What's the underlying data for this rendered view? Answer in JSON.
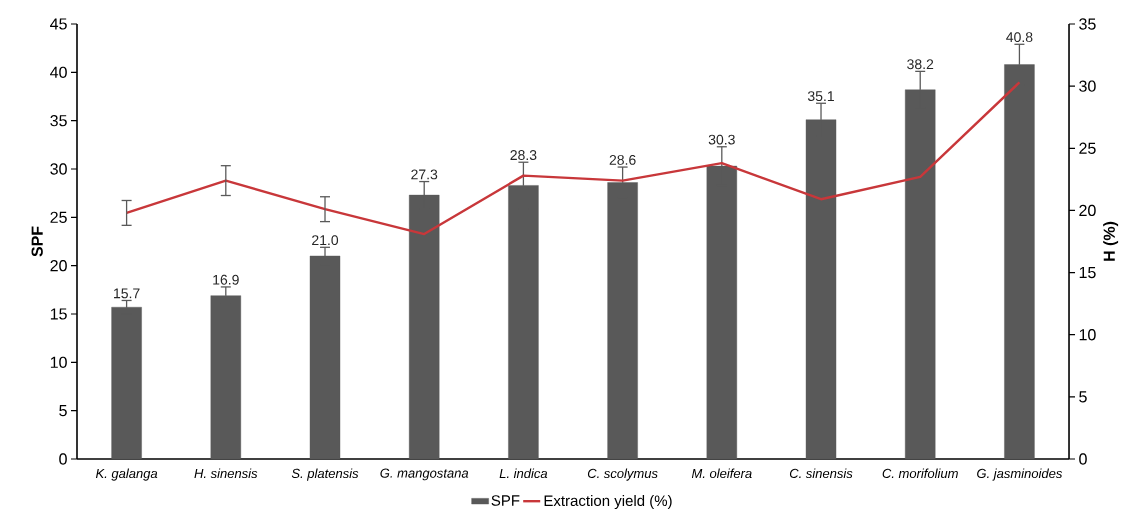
{
  "chart_data": {
    "type": "bar",
    "ylabel": "SPF",
    "y2label": "H (%)",
    "categories": [
      "K. galanga",
      "H. sinensis",
      "S. platensis",
      "G. mangostana",
      "L. indica",
      "C. scolymus",
      "M. oleifera",
      "C. sinensis",
      "C. morifolium",
      "G. jasminoides"
    ],
    "ylim": [
      0,
      45
    ],
    "yticks": [
      0,
      5,
      10,
      15,
      20,
      25,
      30,
      35,
      40,
      45
    ],
    "y2lim": [
      0,
      35
    ],
    "y2ticks": [
      0,
      5,
      10,
      15,
      20,
      25,
      30,
      35
    ],
    "legend": "bottom",
    "grid": false,
    "series": [
      {
        "name": "SPF",
        "color": "#595959",
        "values": [
          15.7,
          16.9,
          21.0,
          27.3,
          28.3,
          28.6,
          30.3,
          35.1,
          38.2,
          40.8
        ],
        "errors": [
          0.7,
          0.9,
          0.9,
          1.4,
          2.4,
          1.6,
          2.0,
          1.7,
          1.9,
          2.1
        ],
        "value_labels": [
          "15.7",
          "16.9",
          "21.0",
          "27.3",
          "28.3",
          "28.6",
          "30.3",
          "35.1",
          "38.2",
          "40.8"
        ]
      },
      {
        "name": "Extraction yield (%)",
        "type": "line",
        "axis": "y2",
        "color": "#c8373a",
        "values": [
          19.8,
          22.4,
          20.1,
          18.1,
          22.8,
          22.4,
          23.8,
          20.9,
          22.7,
          30.3
        ],
        "errors": [
          1.0,
          1.2,
          1.0,
          null,
          null,
          null,
          null,
          null,
          null,
          null
        ]
      }
    ]
  }
}
